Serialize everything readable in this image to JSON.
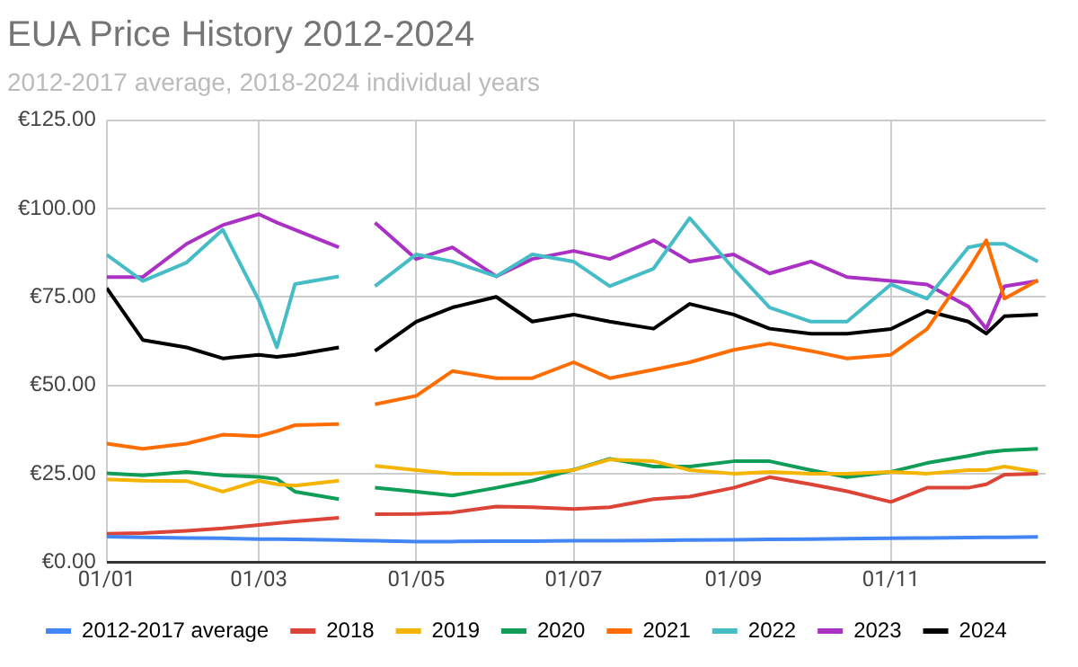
{
  "chart_data": {
    "type": "line",
    "title": "EUA Price History 2012-2024",
    "subtitle": "2012-2017 average, 2018-2024 individual years",
    "x": [
      "--01-01",
      "--01-15",
      "--02-01",
      "--02-15",
      "--03-01",
      "--03-08",
      "--03-15",
      "--04-01",
      "--04-08",
      "--04-15",
      "--05-01",
      "--05-15",
      "--06-01",
      "--06-15",
      "--07-01",
      "--07-15",
      "--08-01",
      "--08-15",
      "--09-01",
      "--09-15",
      "--10-01",
      "--10-15",
      "--11-01",
      "--11-15",
      "--12-01",
      "--12-08",
      "--12-15",
      "--12-28"
    ],
    "series": [
      {
        "name": "2012-2017 average",
        "color": "#4285f4",
        "values": [
          7.2,
          7,
          6.8,
          6.7,
          6.5,
          6.5,
          6.4,
          6.2,
          6.1,
          6,
          5.8,
          5.8,
          5.9,
          5.9,
          6,
          6,
          6.1,
          6.2,
          6.3,
          6.4,
          6.5,
          6.6,
          6.7,
          6.8,
          6.9,
          7,
          7,
          7.1
        ]
      },
      {
        "name": "2018",
        "color": "#db4437",
        "values": [
          8,
          8.2,
          8.8,
          9.5,
          10.5,
          11,
          11.5,
          12.5,
          null,
          13.5,
          13.6,
          14,
          15.7,
          15.5,
          15,
          15.5,
          17.8,
          18.5,
          21,
          24,
          22,
          20,
          17,
          21,
          21,
          22,
          24.7,
          25
        ]
      },
      {
        "name": "2019",
        "color": "#f4b400",
        "values": [
          23.4,
          23,
          22.9,
          19.9,
          23,
          22,
          21.6,
          23,
          null,
          27.2,
          26,
          25,
          24.9,
          25,
          26,
          29,
          28.5,
          26,
          25,
          25.5,
          25,
          25,
          25.5,
          25,
          26,
          26,
          27,
          25.5
        ]
      },
      {
        "name": "2020",
        "color": "#0f9d58",
        "values": [
          25.1,
          24.5,
          25.5,
          24.5,
          24.1,
          23.5,
          19.9,
          17.8,
          null,
          21,
          19.9,
          18.8,
          21,
          23,
          26.1,
          29.2,
          27,
          27,
          28.5,
          28.5,
          26,
          24,
          25.5,
          28,
          30,
          31,
          31.6,
          32
        ]
      },
      {
        "name": "2021",
        "color": "#ff6d01",
        "values": [
          33.5,
          32,
          33.5,
          36,
          35.6,
          37,
          38.7,
          39,
          null,
          44.6,
          47,
          54,
          52,
          52,
          56.5,
          52,
          54.4,
          56.5,
          60,
          61.8,
          59.7,
          57.6,
          58.6,
          65.9,
          82.7,
          91,
          74.5,
          79.7
        ]
      },
      {
        "name": "2022",
        "color": "#46bdc6",
        "values": [
          86.9,
          79.5,
          84.7,
          94,
          74,
          60.7,
          78.6,
          80.8,
          null,
          78,
          87,
          85,
          80.8,
          87,
          85,
          78,
          83,
          97.3,
          83,
          72,
          68,
          68,
          78.5,
          74.5,
          89,
          90,
          90,
          85
        ]
      },
      {
        "name": "2023",
        "color": "#ab30c4",
        "values": [
          80.6,
          80.6,
          90,
          95.3,
          98.4,
          96,
          94,
          89,
          null,
          96,
          85.7,
          89,
          80.8,
          85.7,
          88,
          85.7,
          91,
          85,
          87,
          81.6,
          85,
          80.6,
          79.5,
          78.5,
          72.3,
          66,
          78,
          79.5
        ]
      },
      {
        "name": "2024",
        "color": "#000000",
        "values": [
          77.5,
          62.8,
          60.7,
          57.6,
          58.6,
          58,
          58.6,
          60.7,
          null,
          59.7,
          68,
          72,
          75,
          68,
          70,
          68,
          66,
          73,
          70,
          66,
          64.6,
          64.6,
          65.9,
          71,
          68,
          64.6,
          69.5,
          70
        ]
      }
    ],
    "xlim": [
      "--01-01",
      "--12-31"
    ],
    "xticks": [
      {
        "value": "--01-01",
        "label": "01/01"
      },
      {
        "value": "--03-01",
        "label": "01/03"
      },
      {
        "value": "--05-01",
        "label": "01/05"
      },
      {
        "value": "--07-01",
        "label": "01/07"
      },
      {
        "value": "--09-01",
        "label": "01/09"
      },
      {
        "value": "--11-01",
        "label": "01/11"
      }
    ],
    "ylim": [
      0,
      125
    ],
    "yticks": [
      {
        "value": 0,
        "label": "€0.00"
      },
      {
        "value": 25,
        "label": "€25.00"
      },
      {
        "value": 50,
        "label": "€50.00"
      },
      {
        "value": 75,
        "label": "€75.00"
      },
      {
        "value": 100,
        "label": "€100.00"
      },
      {
        "value": 125,
        "label": "€125.00"
      }
    ],
    "grid": true,
    "legend": "bottom",
    "marker": "none",
    "line_style": "solid"
  }
}
